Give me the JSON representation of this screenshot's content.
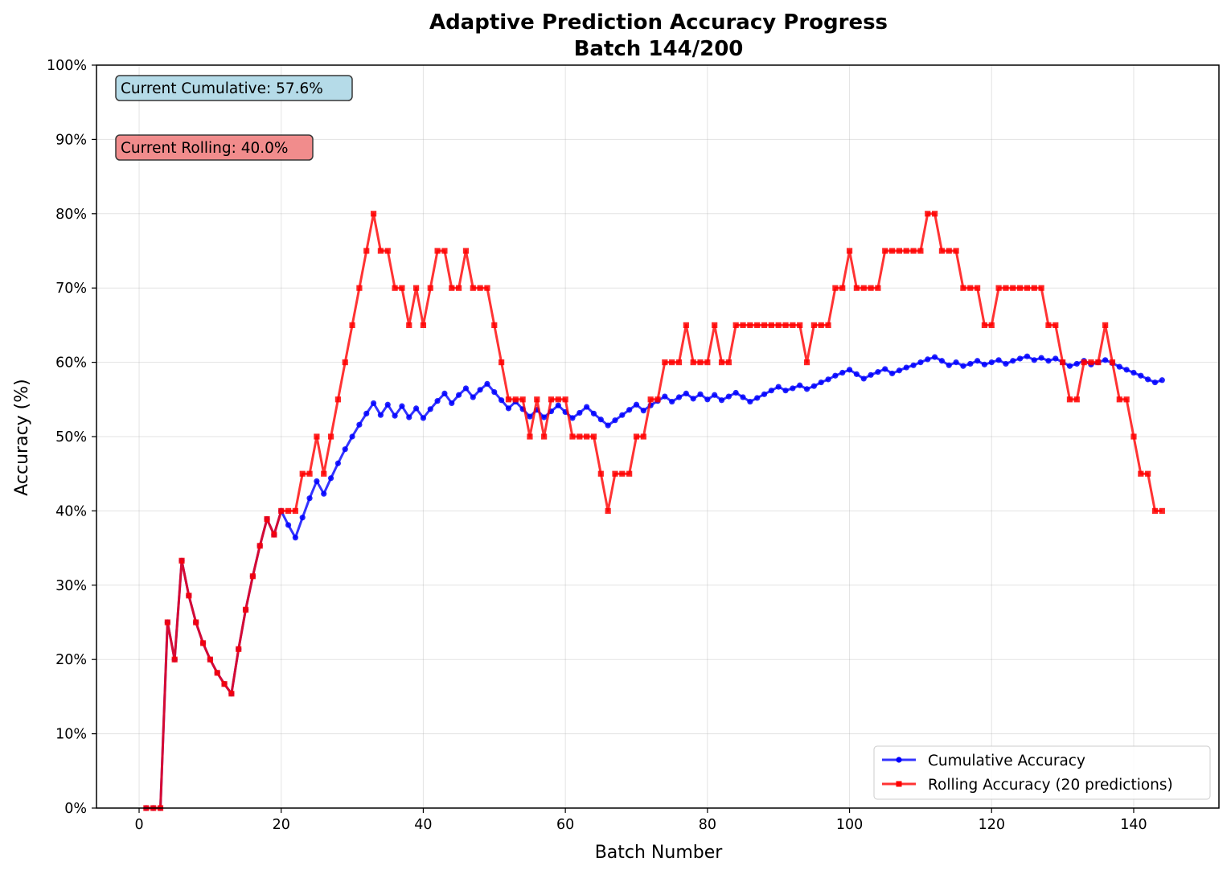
{
  "chart_data": {
    "type": "line",
    "title": "Adaptive Prediction Accuracy Progress",
    "subtitle": "Batch 144/200",
    "xlabel": "Batch Number",
    "ylabel": "Accuracy (%)",
    "xlim": [
      -6,
      152
    ],
    "ylim": [
      0,
      100
    ],
    "x_ticks": [
      0,
      20,
      40,
      60,
      80,
      100,
      120,
      140
    ],
    "y_ticks": [
      0,
      10,
      20,
      30,
      40,
      50,
      60,
      70,
      80,
      90,
      100
    ],
    "y_tick_labels": [
      "0%",
      "10%",
      "20%",
      "30%",
      "40%",
      "50%",
      "60%",
      "70%",
      "80%",
      "90%",
      "100%"
    ],
    "grid": true,
    "legend_position": "lower-right",
    "annotations": [
      {
        "text": "Current Cumulative: 57.6%",
        "color": "#add8e6"
      },
      {
        "text": "Current Rolling: 40.0%",
        "color": "#f08080"
      }
    ],
    "series": [
      {
        "name": "Cumulative Accuracy",
        "color": "#0000ff",
        "marker": "circle",
        "values": [
          0,
          0,
          0,
          25,
          20,
          33.3,
          28.6,
          25,
          22.2,
          20,
          18.2,
          16.7,
          15.4,
          21.4,
          26.7,
          31.2,
          35.3,
          38.9,
          36.8,
          40,
          38.1,
          36.4,
          39.1,
          41.7,
          44,
          42.3,
          44.4,
          46.4,
          48.3,
          50,
          51.6,
          53.1,
          54.5,
          52.9,
          54.3,
          52.8,
          54.1,
          52.6,
          53.8,
          52.5,
          53.7,
          54.8,
          55.8,
          54.5,
          55.6,
          56.5,
          55.3,
          56.3,
          57.1,
          56,
          54.9,
          53.8,
          54.7,
          53.7,
          52.7,
          53.6,
          52.6,
          53.4,
          54.2,
          53.3,
          52.5,
          53.2,
          54,
          53.1,
          52.3,
          51.5,
          52.2,
          52.9,
          53.6,
          54.3,
          53.5,
          54.2,
          54.8,
          55.4,
          54.7,
          55.3,
          55.8,
          55.1,
          55.7,
          55,
          55.6,
          54.9,
          55.4,
          55.9,
          55.3,
          54.7,
          55.2,
          55.7,
          56.2,
          56.7,
          56.2,
          56.5,
          56.9,
          56.4,
          56.8,
          57.3,
          57.7,
          58.2,
          58.6,
          59,
          58.4,
          57.8,
          58.3,
          58.7,
          59.1,
          58.5,
          58.9,
          59.3,
          59.6,
          60,
          60.4,
          60.7,
          60.2,
          59.6,
          60,
          59.5,
          59.8,
          60.2,
          59.7,
          60,
          60.3,
          59.8,
          60.2,
          60.5,
          60.8,
          60.3,
          60.6,
          60.2,
          60.5,
          60,
          59.5,
          59.8,
          60.2,
          59.7,
          60,
          60.3,
          59.9,
          59.4,
          59,
          58.6,
          58.2,
          57.7,
          57.3,
          57.6
        ]
      },
      {
        "name": "Rolling Accuracy (20 predictions)",
        "color": "#ff0000",
        "marker": "square",
        "values": [
          0,
          0,
          0,
          25,
          20,
          33.3,
          28.6,
          25,
          22.2,
          20,
          18.2,
          16.7,
          15.4,
          21.4,
          26.7,
          31.2,
          35.3,
          38.9,
          36.8,
          40,
          40,
          40,
          45,
          45,
          50,
          45,
          50,
          55,
          60,
          65,
          70,
          75,
          80,
          75,
          75,
          70,
          70,
          65,
          70,
          65,
          70,
          75,
          75,
          70,
          70,
          75,
          70,
          70,
          70,
          65,
          60,
          55,
          55,
          55,
          50,
          55,
          50,
          55,
          55,
          55,
          50,
          50,
          50,
          50,
          45,
          40,
          45,
          45,
          45,
          50,
          50,
          55,
          55,
          60,
          60,
          60,
          65,
          60,
          60,
          60,
          65,
          60,
          60,
          65,
          65,
          65,
          65,
          65,
          65,
          65,
          65,
          65,
          65,
          60,
          65,
          65,
          65,
          70,
          70,
          75,
          70,
          70,
          70,
          70,
          75,
          75,
          75,
          75,
          75,
          75,
          80,
          80,
          75,
          75,
          75,
          70,
          70,
          70,
          65,
          65,
          70,
          70,
          70,
          70,
          70,
          70,
          70,
          65,
          65,
          60,
          55,
          55,
          60,
          60,
          60,
          65,
          60,
          55,
          55,
          50,
          45,
          45,
          40,
          40
        ]
      }
    ]
  }
}
